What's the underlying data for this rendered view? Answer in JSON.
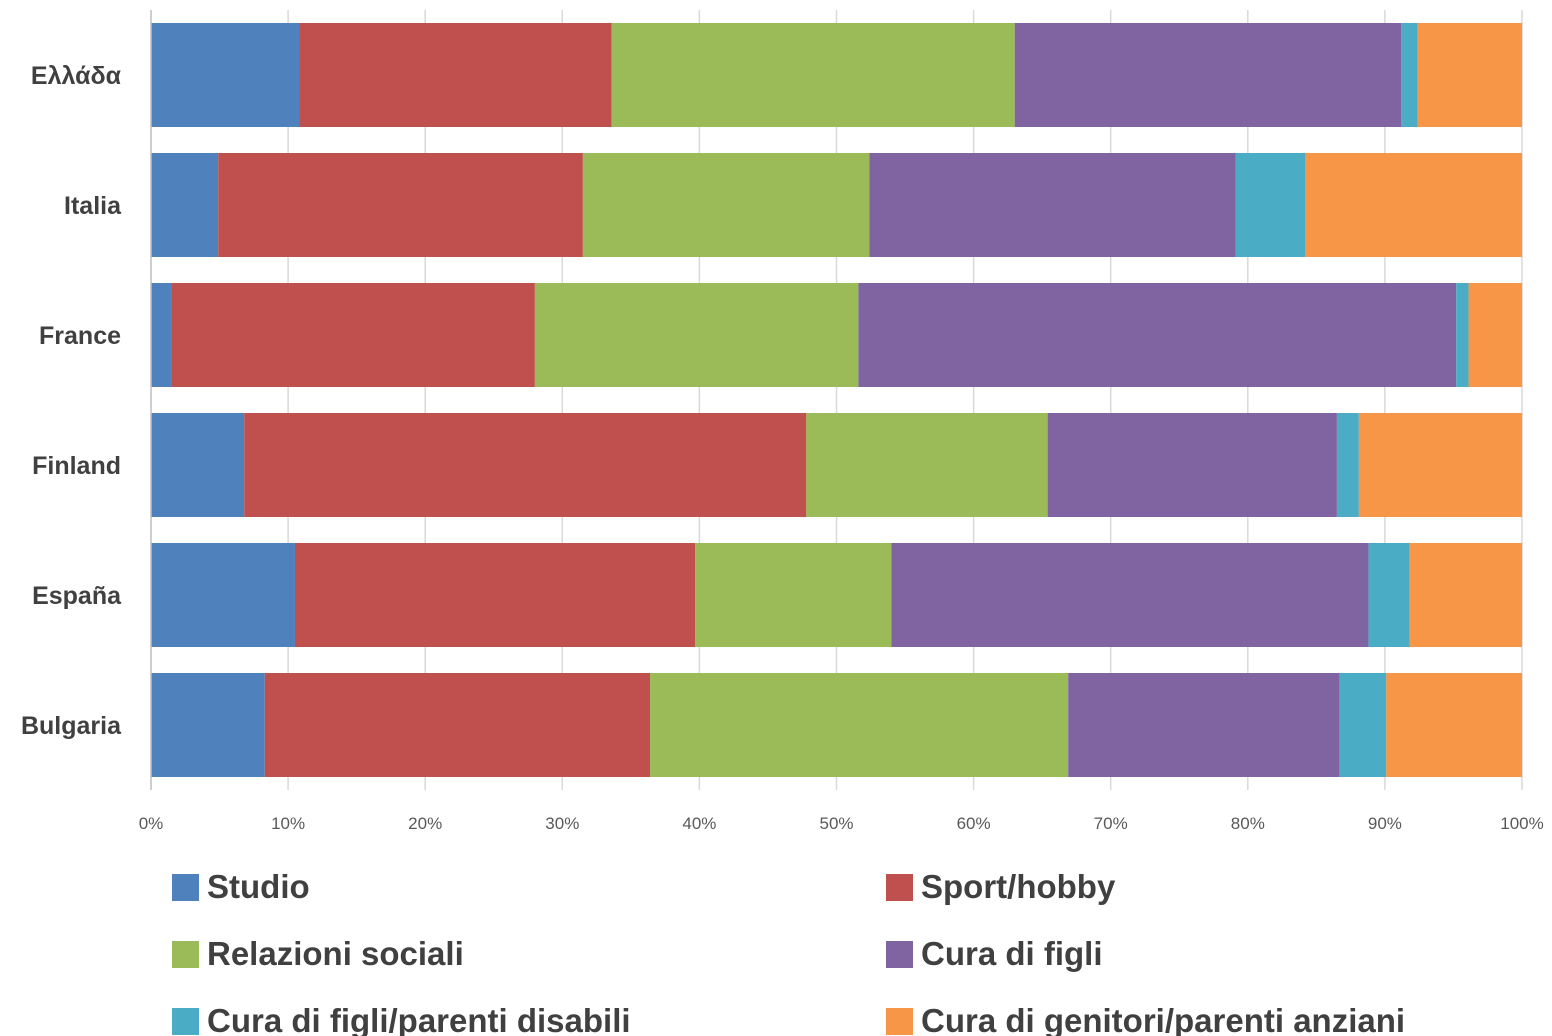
{
  "chart_data": {
    "type": "bar",
    "orientation": "horizontal",
    "stacked": "percent",
    "title": "",
    "xlabel": "",
    "ylabel": "",
    "xlim": [
      0,
      100
    ],
    "grid": "vertical",
    "legend_position": "bottom",
    "categories": [
      "Ελλάδα",
      "Italia",
      "France",
      "Finland",
      "España",
      "Bulgaria"
    ],
    "x_ticks": [
      "0%",
      "10%",
      "20%",
      "30%",
      "40%",
      "50%",
      "60%",
      "70%",
      "80%",
      "90%",
      "100%"
    ],
    "series": [
      {
        "name": "Studio",
        "color": "#4F81BD",
        "values": [
          10.8,
          4.9,
          1.5,
          6.8,
          10.5,
          8.3
        ]
      },
      {
        "name": "Sport/hobby",
        "color": "#C0504D",
        "values": [
          22.8,
          26.6,
          26.5,
          41.0,
          29.2,
          28.1
        ]
      },
      {
        "name": "Relazioni sociali",
        "color": "#9BBB59",
        "values": [
          29.4,
          20.9,
          23.6,
          17.6,
          14.3,
          30.5
        ]
      },
      {
        "name": "Cura di figli",
        "color": "#8064A2",
        "values": [
          28.2,
          26.7,
          43.6,
          21.1,
          34.8,
          19.8
        ]
      },
      {
        "name": " Cura di figli/parenti disabili",
        "color": "#4BACC6",
        "values": [
          1.2,
          5.1,
          0.9,
          1.6,
          3.0,
          3.4
        ]
      },
      {
        "name": "Cura di genitori/parenti anziani",
        "color": "#F79646",
        "values": [
          7.6,
          15.8,
          3.9,
          11.9,
          8.2,
          9.9
        ]
      }
    ]
  },
  "colors": {
    "gridline": "#D9D9D9",
    "axis": "#BFBFBF",
    "category_text": "#404040",
    "tick_text": "#595959"
  }
}
